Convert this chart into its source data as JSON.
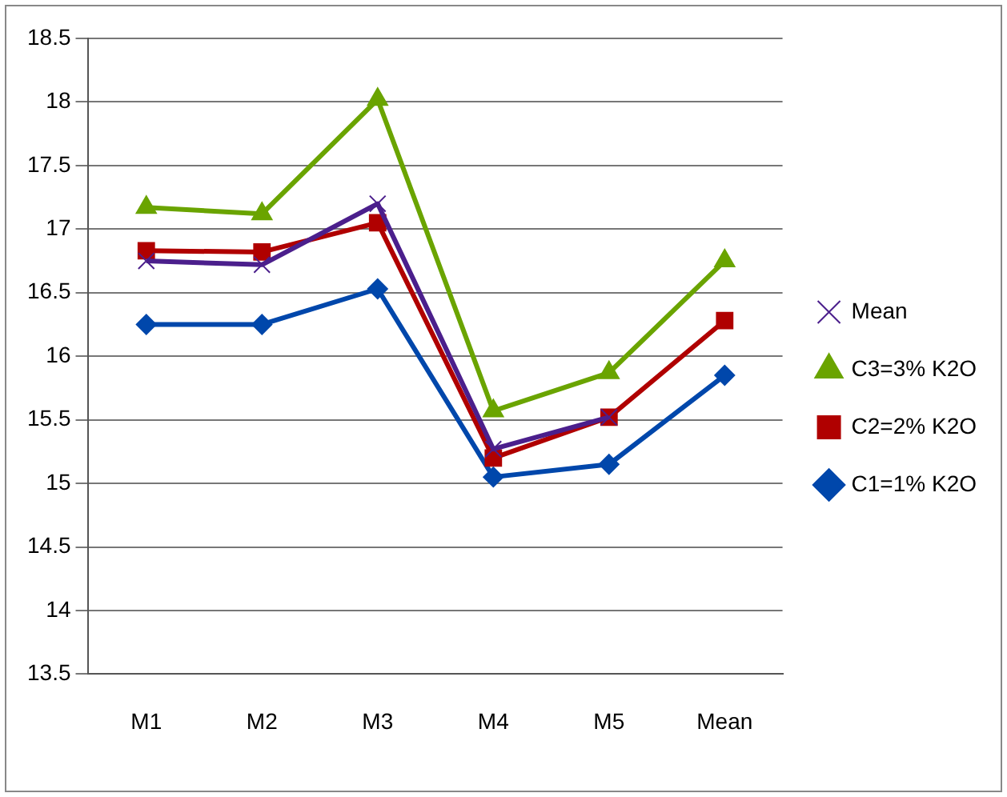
{
  "chart_data": {
    "type": "line",
    "categories": [
      "M1",
      "M2",
      "M3",
      "M4",
      "M5",
      "Mean"
    ],
    "series": [
      {
        "name": "C1=1% K2O",
        "color": "#0047ab",
        "marker": "diamond",
        "values": [
          16.25,
          16.25,
          16.53,
          15.05,
          15.15,
          15.85
        ]
      },
      {
        "name": "C2=2% K2O",
        "color": "#b00000",
        "marker": "square",
        "values": [
          16.83,
          16.82,
          17.05,
          15.2,
          15.52,
          16.28
        ]
      },
      {
        "name": "C3=3% K2O",
        "color": "#6aa400",
        "marker": "triangle",
        "values": [
          17.17,
          17.12,
          18.02,
          15.57,
          15.87,
          16.75
        ]
      },
      {
        "name": "Mean",
        "color": "#4b1f8c",
        "marker": "cross",
        "values": [
          16.75,
          16.72,
          17.2,
          15.27,
          15.52,
          null
        ]
      }
    ],
    "ylim": [
      13.5,
      18.5
    ],
    "yticks": [
      13.5,
      14,
      14.5,
      15,
      15.5,
      16,
      16.5,
      17,
      17.5,
      18,
      18.5
    ],
    "grid": "y",
    "legend": "right"
  }
}
